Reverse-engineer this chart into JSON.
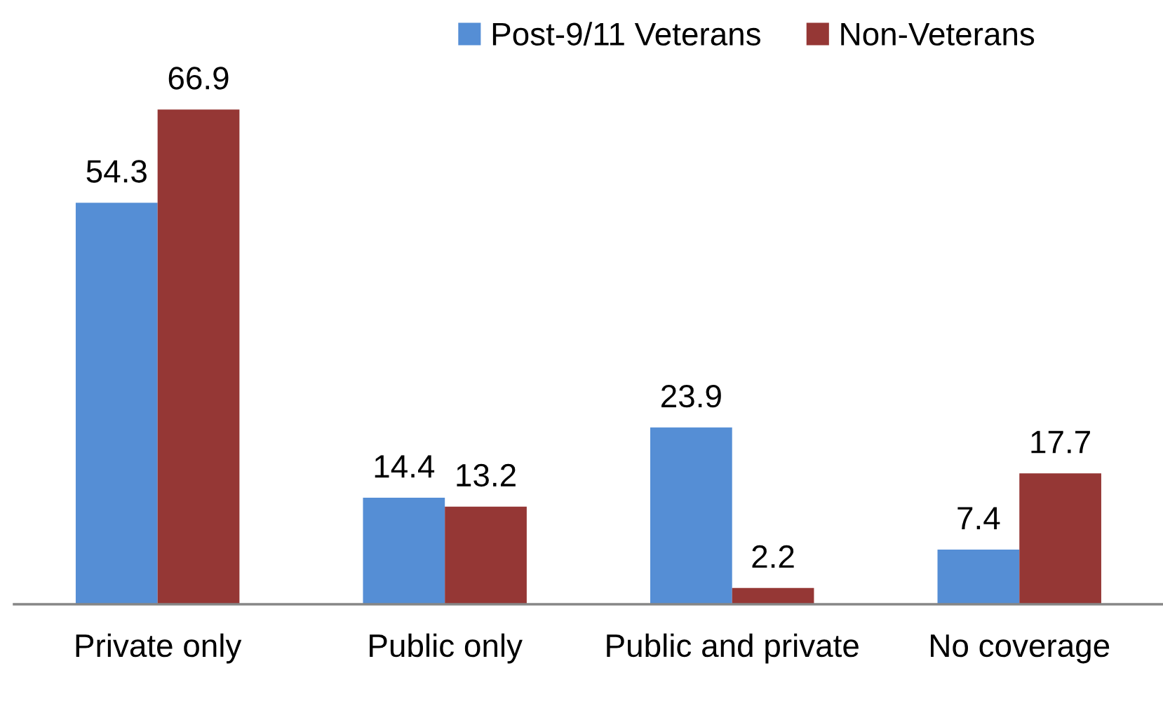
{
  "chart_data": {
    "type": "bar",
    "categories": [
      "Private only",
      "Public only",
      "Public and private",
      "No coverage"
    ],
    "series": [
      {
        "name": "Post-9/11 Veterans",
        "color": "#558ed5",
        "values": [
          54.3,
          14.4,
          23.9,
          7.4
        ]
      },
      {
        "name": "Non-Veterans",
        "color": "#953735",
        "values": [
          66.9,
          13.2,
          2.2,
          17.7
        ]
      }
    ],
    "data_labels": true,
    "grid": false,
    "legend": "top right",
    "tick_labels": "x"
  }
}
